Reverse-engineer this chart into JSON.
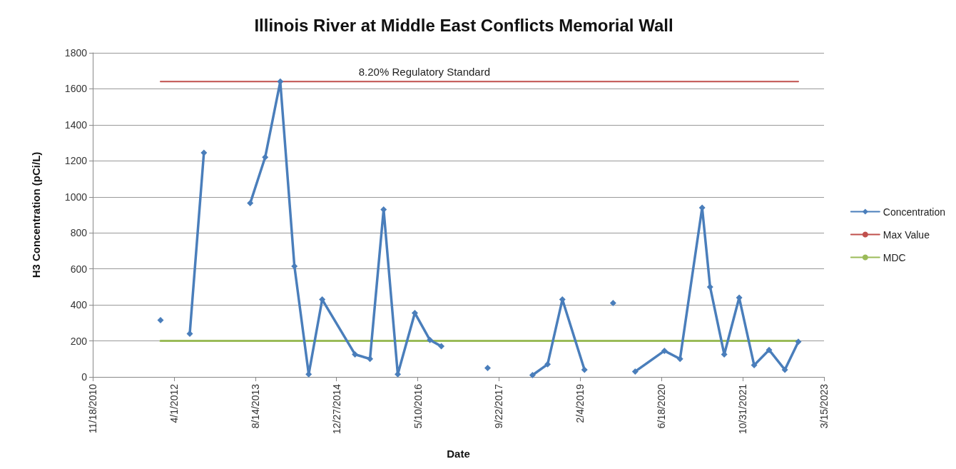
{
  "chart_data": {
    "type": "line",
    "title": "Illinois River at Middle East Conflicts Memorial Wall",
    "xlabel": "Date",
    "ylabel": "H3 Concentration (pCi/L)",
    "xlim": [
      "2010-11-18",
      "2023-03-15"
    ],
    "xticks": [
      {
        "value": "2010-11-18",
        "label": "11/18/2010"
      },
      {
        "value": "2012-04-01",
        "label": "4/1/2012"
      },
      {
        "value": "2013-08-14",
        "label": "8/14/2013"
      },
      {
        "value": "2014-12-27",
        "label": "12/27/2014"
      },
      {
        "value": "2016-05-10",
        "label": "5/10/2016"
      },
      {
        "value": "2017-09-22",
        "label": "9/22/2017"
      },
      {
        "value": "2019-02-04",
        "label": "2/4/2019"
      },
      {
        "value": "2020-06-18",
        "label": "6/18/2020"
      },
      {
        "value": "2021-10-31",
        "label": "10/31/2021"
      },
      {
        "value": "2023-03-15",
        "label": "3/15/2023"
      }
    ],
    "ylim": [
      0,
      1800
    ],
    "yticks": [
      0,
      200,
      400,
      600,
      800,
      1000,
      1200,
      1400,
      1600,
      1800
    ],
    "grid": "y",
    "legend": "right",
    "series": [
      {
        "name": "Concentration",
        "color": "#4a7ebb",
        "marker": "diamond",
        "line_style": "solid",
        "x": [
          "2012-01-09",
          "2012-04-14",
          "2012-07-07",
          "2012-10-02",
          "2013-02-19",
          "2013-07-14",
          "2013-10-14",
          "2014-01-15",
          "2014-04-12",
          "2014-07-09",
          "2014-09-30",
          "2015-04-20",
          "2015-07-21",
          "2015-10-13",
          "2016-01-08",
          "2016-04-22",
          "2016-07-24",
          "2016-10-02",
          "2017-03-09",
          "2017-07-14",
          "2017-11-27",
          "2018-04-16",
          "2018-07-18",
          "2018-10-17",
          "2019-03-02",
          "2019-05-20",
          "2019-08-25",
          "2019-10-17",
          "2020-01-08",
          "2020-07-06",
          "2020-10-10",
          "2021-02-23",
          "2021-04-13",
          "2021-07-09",
          "2021-10-09",
          "2022-01-09",
          "2022-04-11",
          "2022-07-17",
          "2022-10-08"
        ],
        "values": [
          315,
          null,
          240,
          1245,
          null,
          965,
          1220,
          1640,
          615,
          15,
          430,
          125,
          100,
          930,
          15,
          355,
          205,
          170,
          null,
          50,
          null,
          10,
          70,
          430,
          40,
          null,
          410,
          null,
          30,
          145,
          100,
          940,
          500,
          125,
          440,
          65,
          150,
          40,
          195
        ]
      },
      {
        "name": "Max Value",
        "color": "#c0504d",
        "marker": "none",
        "line_style": "solid",
        "x": [
          "2012-01-09",
          "2022-10-08"
        ],
        "values": [
          1640,
          1640
        ]
      },
      {
        "name": "MDC",
        "color": "#9bbb59",
        "marker": "none",
        "line_style": "solid",
        "x": [
          "2012-01-09",
          "2022-10-08"
        ],
        "values": [
          200,
          200
        ]
      }
    ],
    "annotations": [
      {
        "text": "8.20% Regulatory Standard",
        "x": "2016-06-20",
        "y": 1640
      }
    ]
  }
}
